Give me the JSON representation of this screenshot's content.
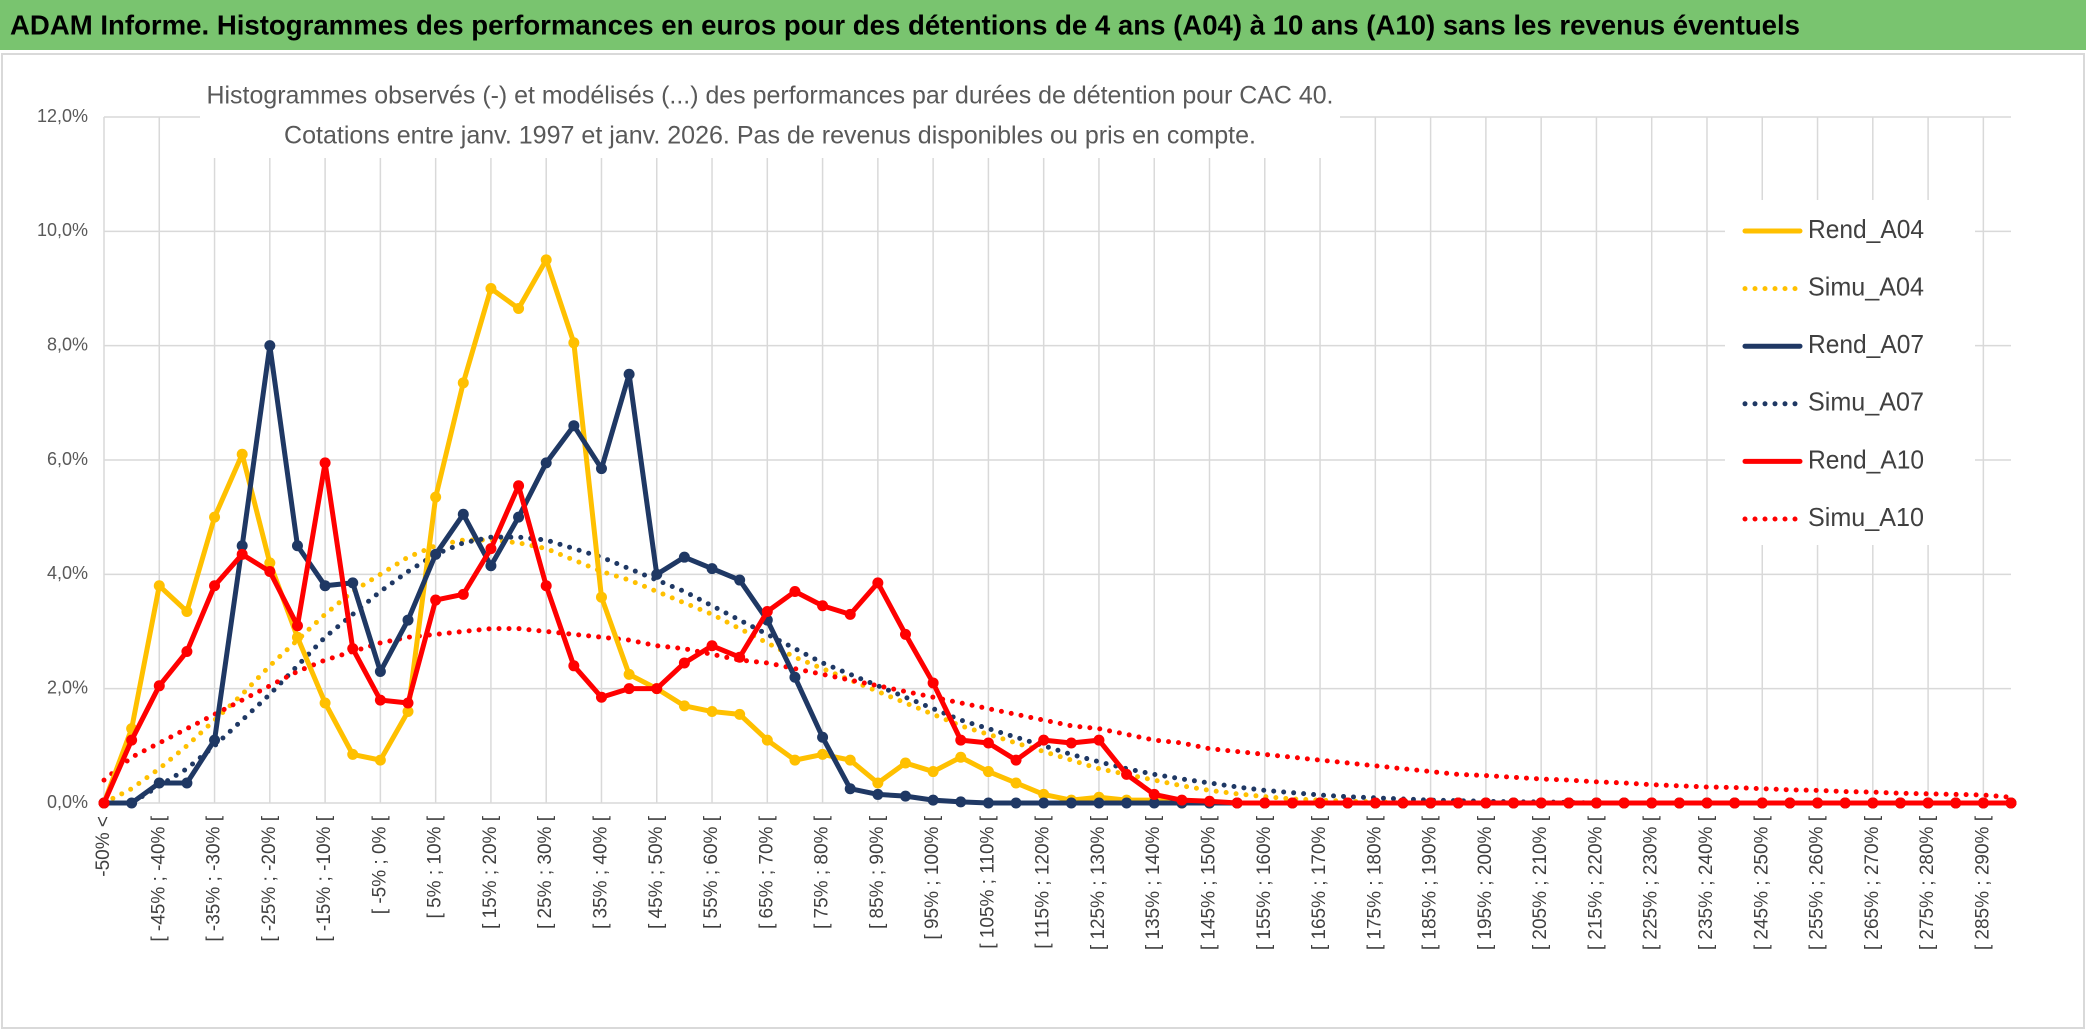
{
  "chart_data": {
    "type": "line",
    "title": "ADAM Informe. Histogrammes des performances en euros pour des détentions de 4 ans (A04) à 10 ans (A10) sans les revenus éventuels",
    "subtitle": [
      "Histogrammes observés (-) et modélisés (...) des performances par durées de détention pour CAC 40.",
      "Cotations entre janv. 1997 et janv. 2026. Pas de revenus disponibles ou pris en compte."
    ],
    "categories": [
      "-50% <",
      null,
      "[ -45% ; -40% [",
      null,
      "[ -35% ; -30% [",
      null,
      "[ -25% ; -20% [",
      null,
      "[ -15% ; -10% [",
      null,
      "[ -5% ; 0% [",
      null,
      "[ 5% ; 10% [",
      null,
      "[ 15% ; 20% [",
      null,
      "[ 25% ; 30% [",
      null,
      "[ 35% ; 40% [",
      null,
      "[ 45% ; 50% [",
      null,
      "[ 55% ; 60% [",
      null,
      "[ 65% ; 70% [",
      null,
      "[ 75% ; 80% [",
      null,
      "[ 85% ; 90% [",
      null,
      "[ 95% ; 100% [",
      null,
      "[ 105% ; 110% [",
      null,
      "[ 115% ; 120% [",
      null,
      "[ 125% ; 130% [",
      null,
      "[ 135% ; 140% [",
      null,
      "[ 145% ; 150% [",
      null,
      "[ 155% ; 160% [",
      null,
      "[ 165% ; 170% [",
      null,
      "[ 175% ; 180% [",
      null,
      "[ 185% ; 190% [",
      null,
      "[ 195% ; 200% [",
      null,
      "[ 205% ; 210% [",
      null,
      "[ 215% ; 220% [",
      null,
      "[ 225% ; 230% [",
      null,
      "[ 235% ; 240% [",
      null,
      "[ 245% ; 250% [",
      null,
      "[ 255% ; 260% [",
      null,
      "[ 265% ; 270% [",
      null,
      "[ 275% ; 280% [",
      null,
      "[ 285% ; 290% [",
      null
    ],
    "series": [
      {
        "name": "Rend_A04",
        "color": "#ffc000",
        "style": "solid",
        "markers": true,
        "values": [
          0,
          1.3,
          3.8,
          3.35,
          5.0,
          6.1,
          4.2,
          2.9,
          1.75,
          0.85,
          0.75,
          1.6,
          5.35,
          7.35,
          9.0,
          8.65,
          9.5,
          8.05,
          3.6,
          2.25,
          2.0,
          1.7,
          1.6,
          1.55,
          1.1,
          0.75,
          0.85,
          0.75,
          0.35,
          0.7,
          0.55,
          0.8,
          0.55,
          0.35,
          0.15,
          0.05,
          0.1,
          0.05,
          0.05,
          0,
          0,
          0,
          0,
          0,
          0,
          0,
          0,
          0,
          0,
          0,
          0,
          0,
          0,
          0,
          0,
          0,
          0,
          0,
          0,
          0,
          0,
          0,
          0,
          0,
          0,
          0,
          0,
          0,
          0,
          0
        ]
      },
      {
        "name": "Simu_A04",
        "color": "#ffc000",
        "style": "dotted",
        "markers": false,
        "values": [
          0,
          0.25,
          0.6,
          1.0,
          1.45,
          1.9,
          2.4,
          2.85,
          3.3,
          3.7,
          4.0,
          4.3,
          4.5,
          4.6,
          4.6,
          4.55,
          4.45,
          4.25,
          4.05,
          3.9,
          3.7,
          3.5,
          3.3,
          3.05,
          2.8,
          2.55,
          2.35,
          2.15,
          1.95,
          1.75,
          1.55,
          1.35,
          1.2,
          1.05,
          0.9,
          0.75,
          0.6,
          0.5,
          0.4,
          0.3,
          0.22,
          0.16,
          0.11,
          0.07,
          0.05,
          0.03,
          0.02,
          0,
          0,
          0,
          0,
          0,
          0,
          0,
          0,
          0,
          0,
          0,
          0,
          0,
          0,
          0,
          0,
          0,
          0,
          0,
          0,
          0,
          0,
          0
        ]
      },
      {
        "name": "Rend_A07",
        "color": "#1f3864",
        "style": "solid",
        "markers": true,
        "values": [
          0,
          0,
          0.35,
          0.35,
          1.1,
          4.5,
          8.0,
          4.5,
          3.8,
          3.85,
          2.3,
          3.2,
          4.35,
          5.05,
          4.15,
          5.0,
          5.95,
          6.6,
          5.85,
          7.5,
          4.0,
          4.3,
          4.1,
          3.9,
          3.2,
          2.2,
          1.15,
          0.25,
          0.15,
          0.12,
          0.05,
          0.02,
          0,
          0,
          0,
          0,
          0,
          0,
          0,
          0,
          0,
          0,
          0,
          0,
          0,
          0,
          0,
          0,
          0,
          0,
          0,
          0,
          0,
          0,
          0,
          0,
          0,
          0,
          0,
          0,
          0,
          0,
          0,
          0,
          0,
          0,
          0,
          0,
          0,
          0
        ]
      },
      {
        "name": "Simu_A07",
        "color": "#1f3864",
        "style": "dotted",
        "markers": false,
        "values": [
          0,
          0,
          0.3,
          0.6,
          1.0,
          1.45,
          1.9,
          2.4,
          2.9,
          3.3,
          3.7,
          4.05,
          4.35,
          4.55,
          4.65,
          4.65,
          4.6,
          4.45,
          4.3,
          4.1,
          3.9,
          3.7,
          3.45,
          3.2,
          2.95,
          2.7,
          2.45,
          2.25,
          2.05,
          1.85,
          1.65,
          1.45,
          1.3,
          1.15,
          1.0,
          0.85,
          0.72,
          0.6,
          0.5,
          0.42,
          0.35,
          0.28,
          0.22,
          0.18,
          0.14,
          0.11,
          0.09,
          0.07,
          0.05,
          0.04,
          0.03,
          0.02,
          0.02,
          0.01,
          0,
          0,
          0,
          0,
          0,
          0,
          0,
          0,
          0,
          0,
          0,
          0,
          0,
          0,
          0,
          0
        ]
      },
      {
        "name": "Rend_A10",
        "color": "#ff0000",
        "style": "solid",
        "markers": true,
        "values": [
          0,
          1.1,
          2.05,
          2.65,
          3.8,
          4.35,
          4.05,
          3.1,
          5.95,
          2.7,
          1.8,
          1.75,
          3.55,
          3.65,
          4.45,
          5.55,
          3.8,
          2.4,
          1.85,
          2.0,
          2.0,
          2.45,
          2.75,
          2.55,
          3.35,
          3.7,
          3.45,
          3.3,
          3.85,
          2.95,
          2.1,
          1.1,
          1.05,
          0.75,
          1.1,
          1.05,
          1.1,
          0.5,
          0.15,
          0.05,
          0.03,
          0,
          0,
          0,
          0,
          0,
          0,
          0,
          0,
          0,
          0,
          0,
          0,
          0,
          0,
          0,
          0,
          0,
          0,
          0,
          0,
          0,
          0,
          0,
          0,
          0,
          0,
          0,
          0,
          0
        ]
      },
      {
        "name": "Simu_A10",
        "color": "#ff0000",
        "style": "dotted",
        "markers": false,
        "values": [
          0.4,
          0.8,
          1.05,
          1.3,
          1.55,
          1.8,
          2.05,
          2.3,
          2.5,
          2.65,
          2.8,
          2.9,
          2.95,
          3.0,
          3.05,
          3.05,
          3.0,
          2.95,
          2.9,
          2.85,
          2.75,
          2.7,
          2.6,
          2.5,
          2.45,
          2.35,
          2.25,
          2.15,
          2.05,
          1.95,
          1.85,
          1.75,
          1.65,
          1.55,
          1.45,
          1.35,
          1.3,
          1.2,
          1.1,
          1.05,
          0.95,
          0.9,
          0.85,
          0.8,
          0.75,
          0.7,
          0.65,
          0.6,
          0.55,
          0.5,
          0.48,
          0.45,
          0.42,
          0.4,
          0.37,
          0.35,
          0.32,
          0.3,
          0.28,
          0.27,
          0.25,
          0.23,
          0.22,
          0.2,
          0.19,
          0.17,
          0.16,
          0.15,
          0.14,
          0.1
        ]
      }
    ],
    "ylim": [
      0,
      12
    ],
    "yticks": [
      {
        "value": 0,
        "label": "0,0%"
      },
      {
        "value": 2,
        "label": "2,0%"
      },
      {
        "value": 4,
        "label": "4,0%"
      },
      {
        "value": 6,
        "label": "6,0%"
      },
      {
        "value": 8,
        "label": "8,0%"
      },
      {
        "value": 10,
        "label": "10,0%"
      },
      {
        "value": 12,
        "label": "12,0%"
      }
    ],
    "grid": true,
    "legend": "right"
  }
}
